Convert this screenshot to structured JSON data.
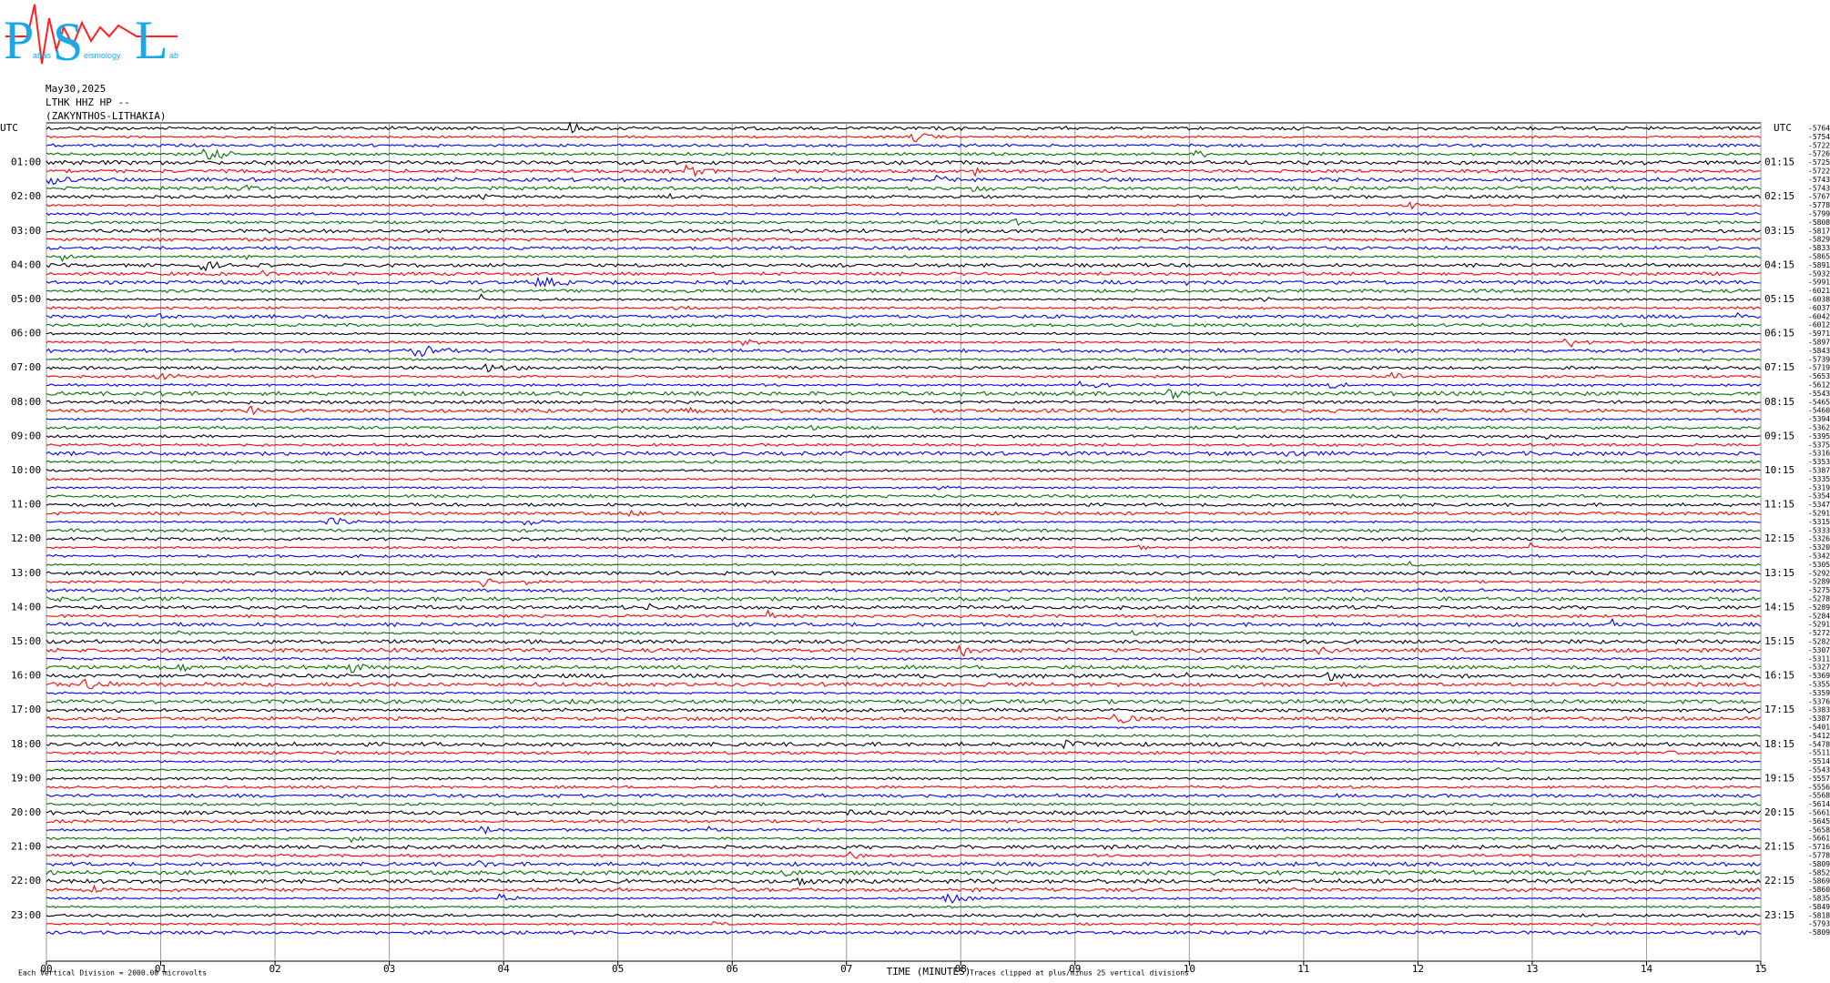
{
  "chart_data": {
    "type": "helicorder",
    "logo": {
      "letters": [
        "P",
        "S",
        "L"
      ],
      "words": [
        "atras",
        "eismology",
        "ab"
      ]
    },
    "date": "May30,2025",
    "station": "LTHK HHZ HP --",
    "location": "(ZAKYNTHOS-LITHAKIA)",
    "xlabel": "TIME (MINUTES)",
    "scale_note": "Each Vertical Division = 2000.00 microvolts",
    "clip_note": "Traces clipped at plus/minus 25 vertical divisions",
    "xlim": [
      0,
      15
    ],
    "xticks": [
      {
        "value": 0,
        "label": "00"
      },
      {
        "value": 1,
        "label": "01"
      },
      {
        "value": 2,
        "label": "02"
      },
      {
        "value": 3,
        "label": "03"
      },
      {
        "value": 4,
        "label": "04"
      },
      {
        "value": 5,
        "label": "05"
      },
      {
        "value": 6,
        "label": "06"
      },
      {
        "value": 7,
        "label": "07"
      },
      {
        "value": 8,
        "label": "08"
      },
      {
        "value": 9,
        "label": "09"
      },
      10,
      11,
      12,
      13,
      14,
      15
    ],
    "grid": true,
    "trace_colors": [
      "#000000",
      "#ff0000",
      "#0000ff",
      "#007000"
    ],
    "left_labels": [
      "UTC",
      "01:00",
      "02:00",
      "03:00",
      "04:00",
      "05:00",
      "06:00",
      "07:00",
      "08:00",
      "09:00",
      "10:00",
      "11:00",
      "12:00",
      "13:00",
      "14:00",
      "15:00",
      "16:00",
      "17:00",
      "18:00",
      "19:00",
      "20:00",
      "21:00",
      "22:00",
      "23:00"
    ],
    "right_labels": [
      "UTC",
      "01:15",
      "02:15",
      "03:15",
      "04:15",
      "05:15",
      "06:15",
      "07:15",
      "08:15",
      "09:15",
      "10:15",
      "11:15",
      "12:15",
      "13:15",
      "14:15",
      "15:15",
      "16:15",
      "17:15",
      "18:15",
      "19:15",
      "20:15",
      "21:15",
      "22:15",
      "23:15"
    ],
    "offsets": [
      -5764,
      -5754,
      -5722,
      -5726,
      -5725,
      -5722,
      -5743,
      -5743,
      -5767,
      -5778,
      -5799,
      -5808,
      -5817,
      -5829,
      -5833,
      -5865,
      -5891,
      -5932,
      -5991,
      -6021,
      -6038,
      -6037,
      -6042,
      -6012,
      -5971,
      -5897,
      -5843,
      -5739,
      -5719,
      -5653,
      -5612,
      -5543,
      -5465,
      -5460,
      -5394,
      -5362,
      -5395,
      -5375,
      -5316,
      -5353,
      -5387,
      -5335,
      -5319,
      -5354,
      -5347,
      -5291,
      -5315,
      -5333,
      -5326,
      -5320,
      -5342,
      -5305,
      -5292,
      -5289,
      -5275,
      -5278,
      -5289,
      -5284,
      -5291,
      -5272,
      -5282,
      -5307,
      -5311,
      -5327,
      -5369,
      -5355,
      -5359,
      -5376,
      -5383,
      -5387,
      -5401,
      -5412,
      -5478,
      -5511,
      -5514,
      -5543,
      -5557,
      -5556,
      -5568,
      -5614,
      -5661,
      -5645,
      -5658,
      -5661,
      -5716,
      -5778,
      -5809,
      -5852,
      -5869,
      -5860,
      -5835,
      -5849,
      -5818,
      -5793,
      -5809
    ]
  }
}
